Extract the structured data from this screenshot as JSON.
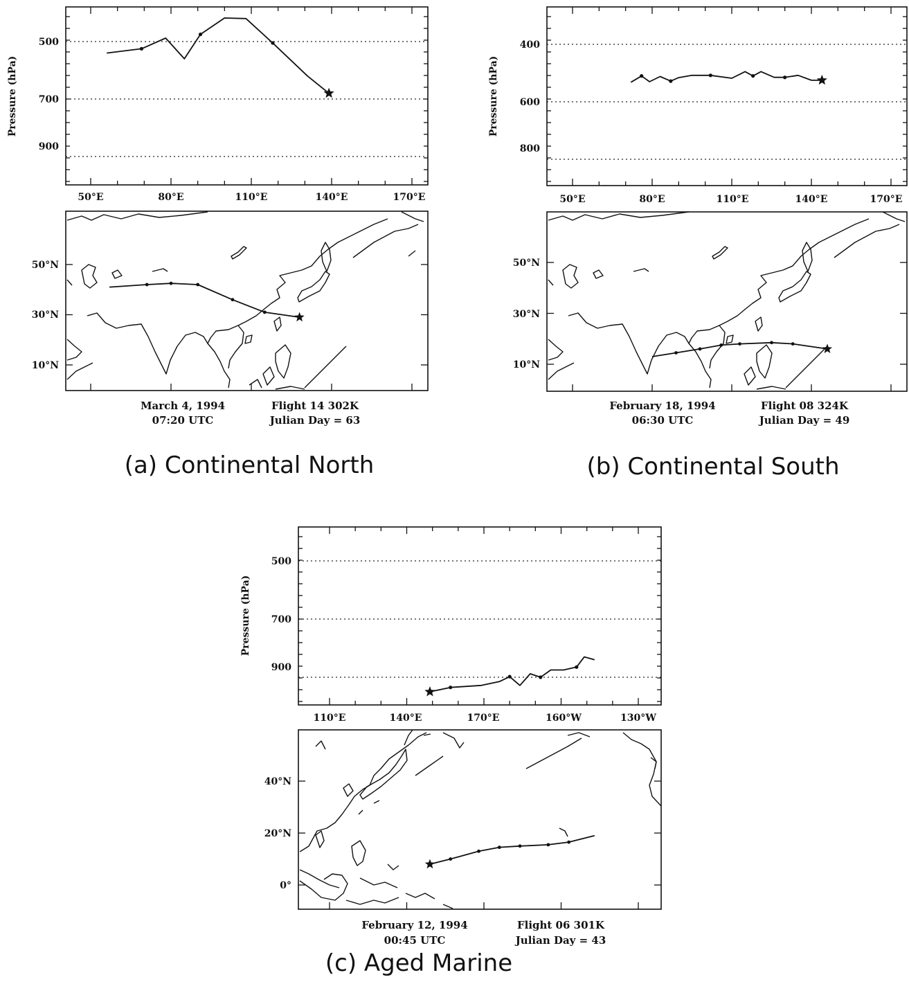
{
  "panels": [
    {
      "caption": "(a) Continental North",
      "date": "March 4, 1994",
      "time": "07:20 UTC",
      "flight": "Flight 14 302K",
      "julian": "Julian Day =  63",
      "pressure_axis_label": "Pressure (hPa)",
      "pressure_ticks": [
        "500",
        "700",
        "900"
      ],
      "lon_ticks": [
        "50°E",
        "80°E",
        "110°E",
        "140°E",
        "170°E"
      ],
      "lat_ticks": [
        "50°N",
        "30°N",
        "10°N"
      ]
    },
    {
      "caption": "(b)  Continental South",
      "date": "February 18, 1994",
      "time": "06:30 UTC",
      "flight": "Flight 08 324K",
      "julian": "Julian Day =  49",
      "pressure_axis_label": "Pressure (hPa)",
      "pressure_ticks": [
        "400",
        "600",
        "800"
      ],
      "lon_ticks": [
        "50°E",
        "80°E",
        "110°E",
        "140°E",
        "170°E"
      ],
      "lat_ticks": [
        "50°N",
        "30°N",
        "10°N"
      ]
    },
    {
      "caption": "(c)  Aged Marine",
      "date": "February 12, 1994",
      "time": "00:45 UTC",
      "flight": "Flight 06 301K",
      "julian": "Julian Day =  43",
      "pressure_axis_label": "Pressure (hPa)",
      "pressure_ticks": [
        "500",
        "700",
        "900"
      ],
      "lon_ticks": [
        "110°E",
        "140°E",
        "170°E",
        "160°W",
        "130°W"
      ],
      "lat_ticks": [
        "40°N",
        "20°N",
        "0°"
      ]
    }
  ],
  "chart_data": [
    {
      "type": "line",
      "panel": "a",
      "x_unit": "degrees longitude east",
      "x": [
        56,
        69,
        78,
        85,
        91,
        100,
        108,
        118,
        131,
        139
      ],
      "pressure_hPa": [
        540,
        525,
        488,
        560,
        475,
        418,
        420,
        505,
        620,
        680
      ],
      "ylim": [
        1050,
        380
      ],
      "xlim": [
        45,
        180
      ],
      "markers": [
        {
          "x": 139,
          "pressure_hPa": 680,
          "symbol": "star"
        }
      ]
    },
    {
      "type": "line",
      "panel": "b",
      "x_unit": "degrees longitude east",
      "x": [
        72,
        76,
        79,
        83,
        87,
        90,
        95,
        102,
        110,
        115,
        118,
        121,
        126,
        130,
        135,
        140,
        144
      ],
      "pressure_hPa": [
        532,
        510,
        530,
        512,
        528,
        516,
        508,
        508,
        518,
        495,
        510,
        495,
        515,
        515,
        508,
        525,
        525
      ],
      "ylim": [
        960,
        280
      ],
      "xlim": [
        45,
        180
      ],
      "markers": [
        {
          "x": 144,
          "pressure_hPa": 525,
          "symbol": "star"
        }
      ]
    },
    {
      "type": "line",
      "panel": "c",
      "x_unit": "degrees longitude east (0-360)",
      "x": [
        149,
        157,
        169,
        176,
        180,
        184,
        188,
        192,
        196,
        201,
        206,
        209,
        213
      ],
      "pressure_hPa": [
        950,
        935,
        928,
        915,
        898,
        928,
        888,
        900,
        875,
        875,
        865,
        830,
        840
      ],
      "ylim": [
        1035,
        380
      ],
      "xlim": [
        100,
        235
      ],
      "markers": [
        {
          "x": 149,
          "pressure_hPa": 950,
          "symbol": "star"
        }
      ]
    }
  ],
  "maps": [
    {
      "panel": "a",
      "trajectory": [
        [
          57,
          41
        ],
        [
          71,
          42
        ],
        [
          80,
          42.5
        ],
        [
          90,
          42
        ],
        [
          103,
          36
        ],
        [
          115,
          31
        ],
        [
          128,
          29
        ]
      ],
      "star": [
        128,
        29
      ]
    },
    {
      "panel": "b",
      "trajectory": [
        [
          80,
          13
        ],
        [
          89,
          14.5
        ],
        [
          98,
          16
        ],
        [
          106,
          17.5
        ],
        [
          113,
          18
        ],
        [
          125,
          18.5
        ],
        [
          133,
          18
        ],
        [
          146,
          16
        ]
      ],
      "star": [
        146,
        16
      ]
    },
    {
      "panel": "c",
      "trajectory": [
        [
          149,
          8
        ],
        [
          157,
          10
        ],
        [
          168,
          13
        ],
        [
          176,
          14.5
        ],
        [
          184,
          15
        ],
        [
          195,
          15.5
        ],
        [
          203,
          16.5
        ],
        [
          213,
          19
        ]
      ],
      "star": [
        149,
        8
      ]
    }
  ]
}
